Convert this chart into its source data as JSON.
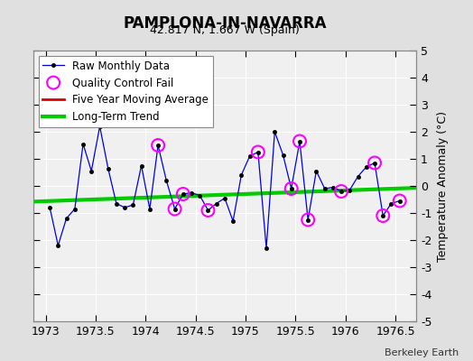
{
  "title": "PAMPLONA-IN-NAVARRA",
  "subtitle": "42.817 N, 1.667 W (Spain)",
  "ylabel": "Temperature Anomaly (°C)",
  "credit": "Berkeley Earth",
  "xlim": [
    1972.875,
    1976.708
  ],
  "ylim": [
    -5,
    5
  ],
  "xticks": [
    1973,
    1973.5,
    1974,
    1974.5,
    1975,
    1975.5,
    1976,
    1976.5
  ],
  "yticks": [
    -5,
    -4,
    -3,
    -2,
    -1,
    0,
    1,
    2,
    3,
    4,
    5
  ],
  "bg_color": "#e0e0e0",
  "plot_bg_color": "#f0f0f0",
  "grid_color": "#ffffff",
  "raw_x": [
    1973.042,
    1973.125,
    1973.208,
    1973.292,
    1973.375,
    1973.458,
    1973.542,
    1973.625,
    1973.708,
    1973.792,
    1973.875,
    1973.958,
    1974.042,
    1974.125,
    1974.208,
    1974.292,
    1974.375,
    1974.458,
    1974.542,
    1974.625,
    1974.708,
    1974.792,
    1974.875,
    1974.958,
    1975.042,
    1975.125,
    1975.208,
    1975.292,
    1975.375,
    1975.458,
    1975.542,
    1975.625,
    1975.708,
    1975.792,
    1975.875,
    1975.958,
    1976.042,
    1976.125,
    1976.208,
    1976.292,
    1976.375,
    1976.458,
    1976.542
  ],
  "raw_y": [
    -0.8,
    -2.2,
    -1.2,
    -0.85,
    1.55,
    0.55,
    2.2,
    0.65,
    -0.65,
    -0.8,
    -0.7,
    0.75,
    -0.85,
    1.5,
    0.2,
    -0.85,
    -0.3,
    -0.25,
    -0.35,
    -0.9,
    -0.65,
    -0.45,
    -1.3,
    0.4,
    1.1,
    1.25,
    -2.3,
    2.0,
    1.15,
    -0.1,
    1.65,
    -1.25,
    0.55,
    -0.1,
    -0.05,
    -0.2,
    -0.15,
    0.35,
    0.7,
    0.85,
    -1.1,
    -0.65,
    -0.55
  ],
  "qc_x": [
    1974.125,
    1974.292,
    1974.375,
    1974.625,
    1975.125,
    1975.458,
    1975.542,
    1975.625,
    1975.958,
    1976.292,
    1976.375,
    1976.542
  ],
  "qc_y": [
    1.5,
    -0.85,
    -0.3,
    -0.9,
    1.25,
    -0.1,
    1.65,
    -1.25,
    -0.2,
    0.85,
    -1.1,
    -0.55
  ],
  "trend_x": [
    1972.875,
    1976.708
  ],
  "trend_y": [
    -0.58,
    -0.07
  ],
  "raw_line_color": "#0000dd",
  "raw_marker_color": "#000000",
  "qc_marker_color": "#ff00ff",
  "moving_avg_color": "#dd0000",
  "trend_color": "#00cc00",
  "trend_linewidth": 3.0
}
